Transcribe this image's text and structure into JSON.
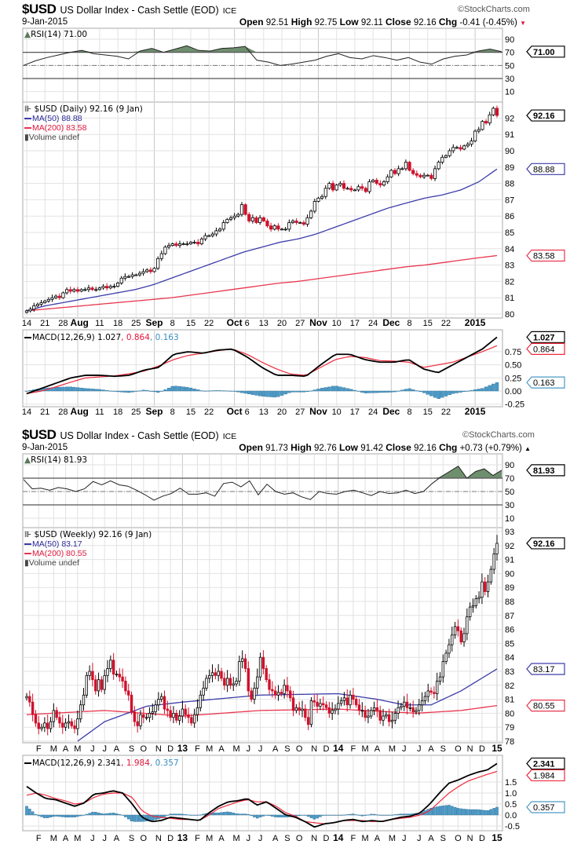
{
  "colors": {
    "up_body": "#ffffff",
    "down_body": "#d0112b",
    "ma50": "#3c3caa",
    "ma200": "#e8364e",
    "macd": "#000000",
    "signal": "#ee2a3c",
    "hist": "#4a9ac8",
    "rsi_fill": "#6e8f6e",
    "grid": "#e2e2e2"
  },
  "watermark": "©StockCharts.com",
  "daily": {
    "symbol": "$USD",
    "name": "US Dollar Index - Cash Settle (EOD)",
    "exchange": "ICE",
    "date": "9-Jan-2015",
    "open_label": "Open",
    "open": "92.51",
    "high_label": "High",
    "high": "92.75",
    "low_label": "Low",
    "low": "92.11",
    "close_label": "Close",
    "close": "92.16",
    "chg_label": "Chg",
    "chg": "-0.41 (-0.45%)",
    "chg_arrow": "▼",
    "rsi_label": "RSI(14) 71.00",
    "price_label": "$USD (Daily) 92.16 (9 Jan)",
    "ma50_label": "MA(50) 88.88",
    "ma200_label": "MA(200) 83.58",
    "volume_label": "Volume undef",
    "macd_label": "MACD(12,26,9) 1.027",
    "signal_label": ", 0.864",
    "hist_label": ", 0.163"
  },
  "weekly": {
    "symbol": "$USD",
    "name": "US Dollar Index - Cash Settle (EOD)",
    "exchange": "ICE",
    "date": "9-Jan-2015",
    "open_label": "Open",
    "open": "91.73",
    "high_label": "High",
    "high": "92.76",
    "low_label": "Low",
    "low": "91.42",
    "close_label": "Close",
    "close": "92.16",
    "chg_label": "Chg",
    "chg": "+0.73 (+0.79%)",
    "chg_arrow": "▲",
    "rsi_label": "RSI(14) 81.93",
    "price_label": "$USD (Weekly) 92.16 (9 Jan)",
    "ma50_label": "MA(50) 83.17",
    "ma200_label": "MA(200) 80.55",
    "volume_label": "Volume undef",
    "macd_label": "MACD(12,26,9) 2.341",
    "signal_label": ", 1.984",
    "hist_label": ", 0.357"
  },
  "chart_data": [
    {
      "type": "candlestick",
      "title": "$USD (Daily)",
      "x_labels": [
        {
          "t": "14",
          "i": 0
        },
        {
          "t": "21",
          "i": 5
        },
        {
          "t": "28",
          "i": 10
        },
        {
          "t": "Aug",
          "i": 14,
          "bold": true
        },
        {
          "t": "11",
          "i": 20
        },
        {
          "t": "18",
          "i": 25
        },
        {
          "t": "25",
          "i": 30
        },
        {
          "t": "Sep",
          "i": 35,
          "bold": true
        },
        {
          "t": "8",
          "i": 40
        },
        {
          "t": "15",
          "i": 45
        },
        {
          "t": "22",
          "i": 50
        },
        {
          "t": "Oct",
          "i": 57,
          "bold": true
        },
        {
          "t": "6",
          "i": 60
        },
        {
          "t": "13",
          "i": 65
        },
        {
          "t": "20",
          "i": 70
        },
        {
          "t": "27",
          "i": 75
        },
        {
          "t": "Nov",
          "i": 80,
          "bold": true
        },
        {
          "t": "10",
          "i": 85
        },
        {
          "t": "17",
          "i": 90
        },
        {
          "t": "24",
          "i": 95
        },
        {
          "t": "Dec",
          "i": 100,
          "bold": true
        },
        {
          "t": "8",
          "i": 105
        },
        {
          "t": "15",
          "i": 110
        },
        {
          "t": "22",
          "i": 115
        },
        {
          "t": "2015",
          "i": 123,
          "bold": true
        }
      ],
      "rsi": {
        "ticks": [
          "90",
          "70",
          "50",
          "30",
          "10"
        ],
        "overbought": 70,
        "oversold": 30,
        "mid": 50,
        "last": "71.00",
        "values": [
          50,
          57,
          62,
          66,
          70,
          73,
          68,
          66,
          64,
          60,
          72,
          76,
          70,
          75,
          80,
          73,
          72,
          76,
          77,
          79,
          58,
          55,
          50,
          52,
          55,
          58,
          64,
          68,
          62,
          60,
          65,
          62,
          58,
          62,
          55,
          52,
          60,
          64,
          66,
          72,
          75,
          71
        ]
      },
      "price": {
        "ticks": [
          "92",
          "91",
          "90",
          "89",
          "88",
          "87",
          "86",
          "85",
          "84",
          "83",
          "82",
          "81",
          "80"
        ],
        "ylim": [
          80,
          92
        ],
        "last": "92.16",
        "closes": [
          80.2,
          80.3,
          80.5,
          80.6,
          80.7,
          80.8,
          80.9,
          81.0,
          81.1,
          81.0,
          81.3,
          81.5,
          81.4,
          81.5,
          81.4,
          81.5,
          81.5,
          81.6,
          81.5,
          81.5,
          81.6,
          81.7,
          81.6,
          81.7,
          81.7,
          81.9,
          82.2,
          82.3,
          82.3,
          82.4,
          82.4,
          82.5,
          82.6,
          82.7,
          82.6,
          82.8,
          83.4,
          83.7,
          84.1,
          84.2,
          84.3,
          84.2,
          84.3,
          84.3,
          84.3,
          84.4,
          84.4,
          84.3,
          84.6,
          84.8,
          84.8,
          84.9,
          85.1,
          85.2,
          85.6,
          85.8,
          85.9,
          86.0,
          86.1,
          86.7,
          86.1,
          85.7,
          85.9,
          85.6,
          85.9,
          85.7,
          85.4,
          85.2,
          85.4,
          85.2,
          85.2,
          85.2,
          85.6,
          85.7,
          85.6,
          85.6,
          85.5,
          85.9,
          86.3,
          86.9,
          87.1,
          87.2,
          87.7,
          88.0,
          87.6,
          87.9,
          88.0,
          87.7,
          87.7,
          87.6,
          87.6,
          87.8,
          87.7,
          87.5,
          88.1,
          88.2,
          88.0,
          87.9,
          88.1,
          88.4,
          88.8,
          88.6,
          88.9,
          88.9,
          89.3,
          88.8,
          88.6,
          88.5,
          88.4,
          88.5,
          88.5,
          88.3,
          88.9,
          89.3,
          89.6,
          89.7,
          90.0,
          90.2,
          90.2,
          90.1,
          90.3,
          90.4,
          90.6,
          91.2,
          91.3,
          91.8,
          91.7,
          92.2,
          92.6,
          92.16
        ],
        "ma50": {
          "last": "88.88",
          "values": [
            80.2,
            80.5,
            80.7,
            80.9,
            81.1,
            81.3,
            81.5,
            81.8,
            82.2,
            82.6,
            83.0,
            83.4,
            83.8,
            84.1,
            84.4,
            84.6,
            84.9,
            85.3,
            85.7,
            86.1,
            86.5,
            86.8,
            87.1,
            87.3,
            87.6,
            88.1,
            88.88
          ]
        },
        "ma200": {
          "last": "83.58",
          "values": [
            80.2,
            80.3,
            80.4,
            80.5,
            80.6,
            80.7,
            80.8,
            80.9,
            81.0,
            81.15,
            81.3,
            81.45,
            81.6,
            81.75,
            81.9,
            82.0,
            82.15,
            82.3,
            82.45,
            82.6,
            82.75,
            82.9,
            83.0,
            83.15,
            83.3,
            83.45,
            83.58
          ]
        }
      },
      "macd": {
        "ticks": [
          "0.75",
          "0.50",
          "0.25",
          "0.00",
          "-0.25"
        ],
        "tick_values": [
          0.75,
          0.5,
          0.25,
          0,
          -0.25
        ],
        "last_macd": "1.027",
        "last_signal": "0.864",
        "last_hist": "0.163",
        "macd": [
          -0.05,
          0.05,
          0.15,
          0.25,
          0.3,
          0.3,
          0.28,
          0.3,
          0.4,
          0.45,
          0.7,
          0.75,
          0.72,
          0.78,
          0.8,
          0.65,
          0.45,
          0.3,
          0.3,
          0.28,
          0.5,
          0.7,
          0.7,
          0.6,
          0.55,
          0.55,
          0.6,
          0.42,
          0.35,
          0.5,
          0.65,
          0.8,
          1.027
        ],
        "signal": [
          -0.05,
          0.0,
          0.08,
          0.17,
          0.25,
          0.27,
          0.29,
          0.33,
          0.38,
          0.48,
          0.6,
          0.68,
          0.72,
          0.77,
          0.8,
          0.7,
          0.55,
          0.42,
          0.32,
          0.3,
          0.45,
          0.6,
          0.66,
          0.64,
          0.58,
          0.57,
          0.55,
          0.45,
          0.5,
          0.55,
          0.65,
          0.75,
          0.864
        ]
      }
    },
    {
      "type": "candlestick",
      "title": "$USD (Weekly)",
      "x_months": [
        "F",
        "M",
        "A",
        "M",
        "J",
        "J",
        "A",
        "S",
        "O",
        "N",
        "D",
        "13",
        "F",
        "M",
        "A",
        "M",
        "J",
        "J",
        "A",
        "S",
        "O",
        "N",
        "D",
        "14",
        "F",
        "M",
        "A",
        "M",
        "J",
        "J",
        "A",
        "S",
        "O",
        "N",
        "D",
        "15"
      ],
      "rsi": {
        "ticks": [
          "90",
          "70",
          "50",
          "30",
          "10"
        ],
        "overbought": 70,
        "oversold": 30,
        "mid": 50,
        "last": "81.93",
        "values": [
          68,
          54,
          55,
          52,
          56,
          54,
          50,
          54,
          65,
          60,
          66,
          60,
          58,
          52,
          45,
          37,
          43,
          47,
          55,
          46,
          46,
          48,
          43,
          62,
          64,
          57,
          66,
          45,
          61,
          50,
          46,
          48,
          42,
          38,
          50,
          47,
          46,
          50,
          52,
          48,
          44,
          50,
          47,
          48,
          52,
          47,
          50,
          62,
          72,
          80,
          88,
          70,
          80,
          84,
          74,
          81.93
        ]
      },
      "price": {
        "ticks": [
          "93",
          "92",
          "91",
          "90",
          "89",
          "88",
          "87",
          "86",
          "85",
          "84",
          "83",
          "82",
          "81",
          "80",
          "79",
          "78"
        ],
        "ylim": [
          78,
          93
        ],
        "last": "92.16",
        "closes": [
          81.2,
          80.8,
          79.9,
          79.3,
          78.9,
          79.0,
          79.3,
          78.9,
          79.4,
          80.2,
          79.7,
          79.3,
          79.0,
          79.3,
          79.4,
          79.1,
          78.9,
          79.6,
          80.6,
          81.3,
          82.7,
          83.0,
          82.4,
          81.6,
          82.4,
          81.7,
          82.7,
          83.2,
          83.8,
          82.8,
          82.8,
          82.6,
          82.3,
          81.6,
          81.3,
          80.1,
          79.4,
          79.1,
          79.9,
          79.7,
          79.7,
          80.0,
          80.1,
          80.6,
          81.0,
          81.2,
          80.3,
          80.2,
          79.7,
          80.0,
          79.5,
          79.8,
          80.3,
          79.9,
          79.7,
          79.3,
          79.9,
          80.4,
          81.3,
          81.8,
          82.5,
          82.7,
          82.9,
          82.7,
          83.0,
          82.5,
          82.0,
          82.5,
          82.0,
          82.1,
          82.3,
          83.7,
          83.9,
          83.2,
          81.6,
          81.0,
          81.8,
          82.6,
          84.0,
          83.2,
          82.4,
          81.7,
          81.6,
          81.3,
          81.5,
          81.4,
          82.0,
          81.6,
          81.1,
          80.2,
          80.4,
          80.2,
          80.3,
          79.7,
          79.2,
          80.9,
          80.8,
          80.5,
          80.7,
          80.6,
          80.4,
          80.0,
          80.2,
          80.3,
          80.7,
          80.9,
          81.1,
          80.6,
          81.3,
          81.0,
          80.6,
          80.2,
          80.2,
          79.7,
          79.8,
          80.2,
          80.4,
          80.2,
          79.5,
          79.8,
          79.9,
          79.4,
          79.5,
          80.0,
          80.4,
          80.5,
          80.8,
          80.4,
          80.4,
          80.1,
          80.2,
          80.6,
          80.9,
          81.2,
          81.6,
          81.5,
          81.4,
          82.3,
          82.6,
          83.7,
          84.3,
          84.9,
          85.6,
          86.2,
          85.9,
          85.1,
          85.7,
          86.9,
          87.6,
          87.7,
          88.2,
          88.3,
          89.4,
          88.7,
          89.4,
          90.3,
          91.4,
          92.16
        ],
        "ma50": {
          "last": "83.17",
          "points": [
            [
              17,
              78.0
            ],
            [
              26,
              79.4
            ],
            [
              40,
              80.5
            ],
            [
              52,
              80.8
            ],
            [
              78,
              81.3
            ],
            [
              104,
              81.4
            ],
            [
              117,
              81.0
            ],
            [
              126,
              80.6
            ],
            [
              135,
              80.6
            ],
            [
              145,
              81.6
            ],
            [
              157,
              83.17
            ]
          ]
        },
        "ma200": {
          "last": "80.55",
          "points": [
            [
              0,
              79.9
            ],
            [
              26,
              80.2
            ],
            [
              52,
              79.8
            ],
            [
              78,
              80.2
            ],
            [
              104,
              80.3
            ],
            [
              130,
              80.0
            ],
            [
              145,
              80.2
            ],
            [
              157,
              80.55
            ]
          ]
        }
      },
      "macd": {
        "ticks": [
          "1.5",
          "1.0",
          "0.5",
          "0.0",
          "-0.5"
        ],
        "tick_values": [
          1.5,
          1.0,
          0.5,
          0,
          -0.5
        ],
        "last_macd": "2.341",
        "last_signal": "1.984",
        "last_hist": "0.357",
        "macd": [
          1.3,
          1.0,
          0.75,
          0.7,
          0.55,
          0.4,
          0.55,
          0.95,
          1.0,
          1.1,
          1.0,
          0.5,
          -0.1,
          -0.3,
          -0.25,
          -0.1,
          -0.15,
          -0.2,
          -0.25,
          0.1,
          0.4,
          0.6,
          0.65,
          0.75,
          0.45,
          0.6,
          0.3,
          0.0,
          -0.1,
          -0.3,
          -0.55,
          -0.4,
          -0.35,
          -0.25,
          -0.2,
          -0.3,
          -0.25,
          -0.3,
          -0.2,
          -0.1,
          -0.05,
          0.1,
          0.5,
          1.0,
          1.45,
          1.6,
          1.8,
          1.95,
          2.05,
          2.341
        ],
        "signal": [
          0.9,
          1.0,
          0.9,
          0.75,
          0.65,
          0.5,
          0.55,
          0.8,
          0.95,
          1.0,
          1.0,
          0.8,
          0.2,
          -0.05,
          -0.1,
          -0.15,
          -0.2,
          -0.2,
          -0.25,
          0.0,
          0.3,
          0.45,
          0.6,
          0.7,
          0.6,
          0.6,
          0.4,
          0.1,
          -0.05,
          -0.3,
          -0.35,
          -0.4,
          -0.35,
          -0.25,
          -0.25,
          -0.25,
          -0.3,
          -0.28,
          -0.2,
          -0.15,
          -0.1,
          0.0,
          0.2,
          0.6,
          1.0,
          1.3,
          1.55,
          1.7,
          1.85,
          1.984
        ]
      }
    }
  ]
}
